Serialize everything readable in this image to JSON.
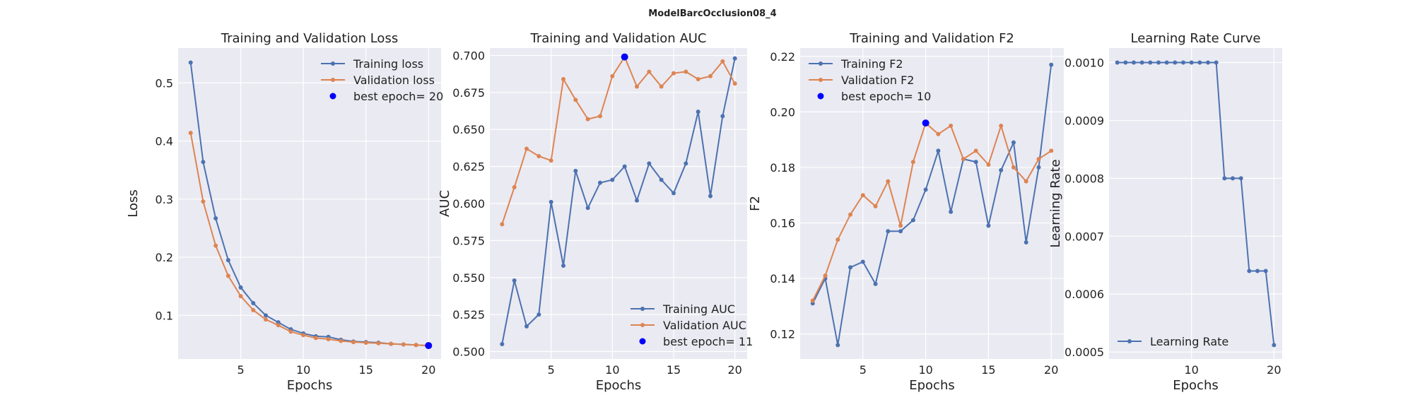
{
  "figure": {
    "suptitle": "ModelBarcOcclusion08_4"
  },
  "colors": {
    "background": "#eaeaf2",
    "grid": "#ffffff",
    "train": "#4c72b0",
    "val": "#dd8452",
    "best": "#0000ff"
  },
  "chart_data": [
    {
      "type": "line",
      "title": "Training and Validation Loss",
      "xlabel": "Epochs",
      "ylabel": "Loss",
      "xlim": [
        0,
        21
      ],
      "ylim": [
        0.025,
        0.56
      ],
      "xticks": [
        5,
        10,
        15,
        20
      ],
      "yticks": [
        0.1,
        0.2,
        0.3,
        0.4,
        0.5
      ],
      "ytick_decimals": 1,
      "x": [
        1,
        2,
        3,
        4,
        5,
        6,
        7,
        8,
        9,
        10,
        11,
        12,
        13,
        14,
        15,
        16,
        17,
        18,
        19,
        20
      ],
      "series": [
        {
          "name": "Training loss",
          "color": "#4c72b0",
          "values": [
            0.535,
            0.364,
            0.267,
            0.195,
            0.148,
            0.121,
            0.1,
            0.088,
            0.076,
            0.069,
            0.064,
            0.063,
            0.058,
            0.055,
            0.054,
            0.053,
            0.051,
            0.05,
            0.049,
            0.048
          ]
        },
        {
          "name": "Validation loss",
          "color": "#dd8452",
          "values": [
            0.414,
            0.296,
            0.22,
            0.168,
            0.133,
            0.109,
            0.093,
            0.083,
            0.072,
            0.066,
            0.061,
            0.059,
            0.056,
            0.054,
            0.053,
            0.052,
            0.051,
            0.05,
            0.049,
            0.048
          ]
        }
      ],
      "best": {
        "label": "best epoch= 20",
        "x": 20,
        "y": 0.048,
        "color": "#0000ff"
      },
      "legend_position": "upper right",
      "grid": true
    },
    {
      "type": "line",
      "title": "Training and Validation AUC",
      "xlabel": "Epochs",
      "ylabel": "AUC",
      "xlim": [
        0,
        21
      ],
      "ylim": [
        0.495,
        0.705
      ],
      "xticks": [
        5,
        10,
        15,
        20
      ],
      "yticks": [
        0.5,
        0.525,
        0.55,
        0.575,
        0.6,
        0.625,
        0.65,
        0.675,
        0.7
      ],
      "ytick_decimals": 3,
      "x": [
        1,
        2,
        3,
        4,
        5,
        6,
        7,
        8,
        9,
        10,
        11,
        12,
        13,
        14,
        15,
        16,
        17,
        18,
        19,
        20
      ],
      "series": [
        {
          "name": "Training AUC",
          "color": "#4c72b0",
          "values": [
            0.505,
            0.548,
            0.517,
            0.525,
            0.601,
            0.558,
            0.622,
            0.597,
            0.614,
            0.616,
            0.625,
            0.602,
            0.627,
            0.616,
            0.607,
            0.627,
            0.662,
            0.605,
            0.659,
            0.698
          ]
        },
        {
          "name": "Validation AUC",
          "color": "#dd8452",
          "values": [
            0.586,
            0.611,
            0.637,
            0.632,
            0.629,
            0.684,
            0.67,
            0.657,
            0.659,
            0.686,
            0.699,
            0.679,
            0.689,
            0.679,
            0.688,
            0.689,
            0.684,
            0.686,
            0.696,
            0.681
          ]
        }
      ],
      "best": {
        "label": "best epoch= 11",
        "x": 11,
        "y": 0.699,
        "color": "#0000ff"
      },
      "legend_position": "lower right",
      "grid": true
    },
    {
      "type": "line",
      "title": "Training and Validation F2",
      "xlabel": "Epochs",
      "ylabel": "F2",
      "xlim": [
        0,
        21
      ],
      "ylim": [
        0.111,
        0.223
      ],
      "xticks": [
        5,
        10,
        15,
        20
      ],
      "yticks": [
        0.12,
        0.14,
        0.16,
        0.18,
        0.2,
        0.22
      ],
      "ytick_decimals": 2,
      "x": [
        1,
        2,
        3,
        4,
        5,
        6,
        7,
        8,
        9,
        10,
        11,
        12,
        13,
        14,
        15,
        16,
        17,
        18,
        19,
        20
      ],
      "series": [
        {
          "name": "Training F2",
          "color": "#4c72b0",
          "values": [
            0.131,
            0.14,
            0.116,
            0.144,
            0.146,
            0.138,
            0.157,
            0.157,
            0.161,
            0.172,
            0.186,
            0.164,
            0.183,
            0.182,
            0.159,
            0.179,
            0.189,
            0.153,
            0.18,
            0.217
          ]
        },
        {
          "name": "Validation F2",
          "color": "#dd8452",
          "values": [
            0.132,
            0.141,
            0.154,
            0.163,
            0.17,
            0.166,
            0.175,
            0.159,
            0.182,
            0.196,
            0.192,
            0.195,
            0.183,
            0.186,
            0.181,
            0.195,
            0.18,
            0.175,
            0.183,
            0.186
          ]
        }
      ],
      "best": {
        "label": "best epoch= 10",
        "x": 10,
        "y": 0.196,
        "color": "#0000ff"
      },
      "legend_position": "upper left",
      "grid": true
    },
    {
      "type": "line",
      "title": "Learning Rate Curve",
      "xlabel": "Epochs",
      "ylabel": "Learning Rate",
      "xlim": [
        0,
        21
      ],
      "ylim": [
        0.000488,
        0.001025
      ],
      "xticks": [
        10,
        20
      ],
      "yticks": [
        0.0005,
        0.0006,
        0.0007,
        0.0008,
        0.0009,
        0.001
      ],
      "ytick_decimals": 4,
      "x": [
        1,
        2,
        3,
        4,
        5,
        6,
        7,
        8,
        9,
        10,
        11,
        12,
        13,
        14,
        15,
        16,
        17,
        18,
        19,
        20
      ],
      "series": [
        {
          "name": "Learning Rate",
          "color": "#4c72b0",
          "values": [
            0.001,
            0.001,
            0.001,
            0.001,
            0.001,
            0.001,
            0.001,
            0.001,
            0.001,
            0.001,
            0.001,
            0.001,
            0.001,
            0.0008,
            0.0008,
            0.0008,
            0.00064,
            0.00064,
            0.00064,
            0.000512
          ]
        }
      ],
      "best": null,
      "legend_position": "lower left",
      "grid": true
    }
  ]
}
